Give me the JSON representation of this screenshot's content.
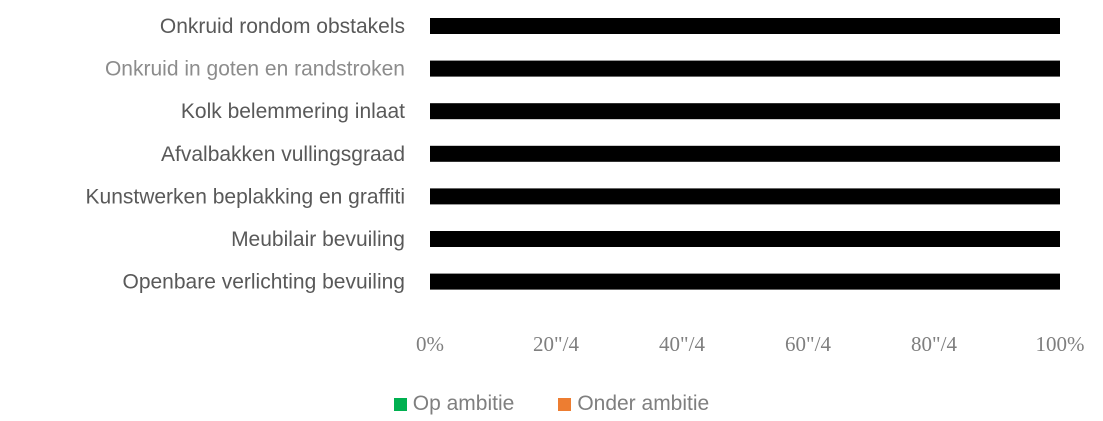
{
  "chart_data": {
    "type": "bar",
    "orientation": "horizontal",
    "stacked": true,
    "categories": [
      "Onkruid rondom obstakels",
      "Onkruid in goten en randstroken",
      "Kolk belemmering inlaat",
      "Afvalbakken vullingsgraad",
      "Kunstwerken beplakking en graffiti",
      "Meubilair bevuiling",
      "Openbare verlichting bevuiling"
    ],
    "series": [
      {
        "name": "Op ambitie",
        "color": "#00b050",
        "values": [
          100,
          100,
          100,
          100,
          100,
          100,
          100
        ]
      },
      {
        "name": "Onder ambitie",
        "color": "#ed7d31",
        "values": [
          0,
          0,
          0,
          0,
          0,
          0,
          0
        ]
      }
    ],
    "bar_fill_rendered": "#000000",
    "xlim": [
      0,
      100
    ],
    "xticks": [
      "0%",
      "20\"/4",
      "40\"/4",
      "60\"/4",
      "80\"/4",
      "100%"
    ],
    "title": "",
    "xlabel": "",
    "ylabel": "",
    "grid": false,
    "legend_position": "bottom"
  }
}
